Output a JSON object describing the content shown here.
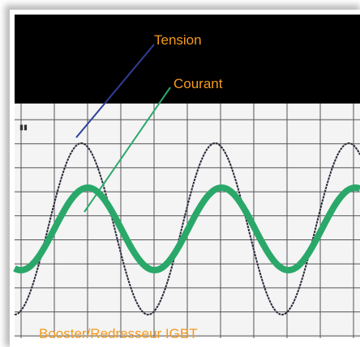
{
  "labels": {
    "voltage": "Tension",
    "current": "Courant",
    "caption": "Booster/Redresseur IGBT"
  }
}
